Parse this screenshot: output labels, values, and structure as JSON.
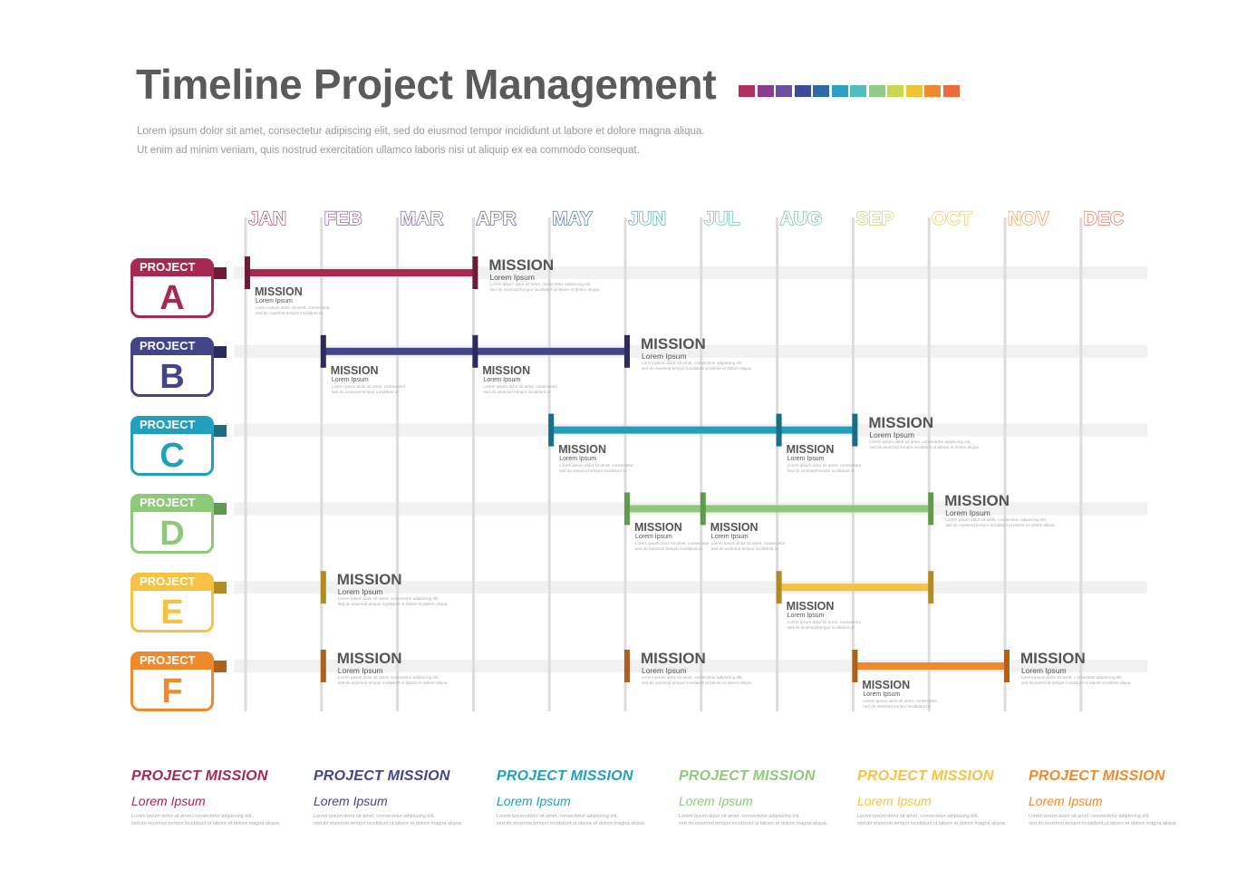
{
  "header": {
    "title": "Timeline Project Management",
    "subtitle_line1": "Lorem ipsum dolor sit amet, consectetur adipiscing elit, sed do eiusmod tempor incididunt ut labore et dolore magna aliqua.",
    "subtitle_line2": "Ut enim ad minim veniam, quis nostrud exercitation ullamco laboris nisi ut aliquip ex ea commodo consequat."
  },
  "swatch_colors": [
    "#b0305e",
    "#8a3d8f",
    "#6b4fa0",
    "#3e4a9a",
    "#2f6aa8",
    "#2aa2c6",
    "#4fc0bb",
    "#8fcf84",
    "#c6d94e",
    "#f2c233",
    "#f08a2e",
    "#ee6a3a"
  ],
  "months": [
    {
      "label": "JAN",
      "color": "#a0304f"
    },
    {
      "label": "FEB",
      "color": "#8d3a86"
    },
    {
      "label": "MAR",
      "color": "#6a4a9a"
    },
    {
      "label": "APR",
      "color": "#3e4a8e"
    },
    {
      "label": "MAY",
      "color": "#2f5fa0"
    },
    {
      "label": "JUN",
      "color": "#23a0c0"
    },
    {
      "label": "JUL",
      "color": "#3ab5b0"
    },
    {
      "label": "AUG",
      "color": "#5ab88a"
    },
    {
      "label": "SEP",
      "color": "#b8cf40"
    },
    {
      "label": "OCT",
      "color": "#f0b82e"
    },
    {
      "label": "NOV",
      "color": "#f08a2e"
    },
    {
      "label": "DEC",
      "color": "#e65a3a"
    }
  ],
  "projects": [
    {
      "label": "PROJECT",
      "letter": "A",
      "color": "#a7294f",
      "dark": "#6e1c36",
      "start": 0,
      "end": 3,
      "milestones": [
        {
          "at": 0,
          "text": "below",
          "title": "MISSION",
          "sub": "Lorem Ipsum",
          "desc1": "Lorem ipsum dolor sit amet, consectetur",
          "desc2": "sed do eiusmod tempor incididunt ut"
        },
        {
          "at": 3,
          "text": "right",
          "title": "MISSION",
          "sub": "Lorem Ipsum",
          "desc1": "Lorem ipsum dolor sit amet, consectetur adipiscing elit,",
          "desc2": "sed do eiusmod tempor incididunt ut labore et dolore aliqua."
        }
      ]
    },
    {
      "label": "PROJECT",
      "letter": "B",
      "color": "#424589",
      "dark": "#2a2c5c",
      "start": 1,
      "end": 5,
      "milestones": [
        {
          "at": 1,
          "text": "below",
          "title": "MISSION",
          "sub": "Lorem Ipsum",
          "desc1": "Lorem ipsum dolor sit amet, consectetur",
          "desc2": "sed do eiusmod tempor incididunt ut"
        },
        {
          "at": 3,
          "text": "below",
          "title": "MISSION",
          "sub": "Lorem Ipsum",
          "desc1": "Lorem ipsum dolor sit amet, consectetur",
          "desc2": "sed do eiusmod tempor incididunt ut"
        },
        {
          "at": 5,
          "text": "right",
          "title": "MISSION",
          "sub": "Lorem Ipsum",
          "desc1": "Lorem ipsum dolor sit amet, consectetur adipiscing elit,",
          "desc2": "sed do eiusmod tempor incididunt ut labore et dolore aliqua."
        }
      ]
    },
    {
      "label": "PROJECT",
      "letter": "C",
      "color": "#21a0bd",
      "dark": "#176f85",
      "start": 4,
      "end": 8,
      "milestones": [
        {
          "at": 4,
          "text": "below",
          "title": "MISSION",
          "sub": "Lorem Ipsum",
          "desc1": "Lorem ipsum dolor sit amet, consectetur",
          "desc2": "sed do eiusmod tempor incididunt ut"
        },
        {
          "at": 7,
          "text": "below",
          "title": "MISSION",
          "sub": "Lorem Ipsum",
          "desc1": "Lorem ipsum dolor sit amet, consectetur",
          "desc2": "sed do eiusmod tempor incididunt ut"
        },
        {
          "at": 8,
          "text": "right",
          "title": "MISSION",
          "sub": "Lorem Ipsum",
          "desc1": "Lorem ipsum dolor sit amet, consectetur adipiscing elit,",
          "desc2": "sed do eiusmod tempor incididunt ut labore et dolore aliqua."
        }
      ]
    },
    {
      "label": "PROJECT",
      "letter": "D",
      "color": "#8ec97a",
      "dark": "#5f9a4f",
      "start": 5,
      "end": 9,
      "milestones": [
        {
          "at": 5,
          "text": "below",
          "title": "MISSION",
          "sub": "Lorem Ipsum",
          "desc1": "Lorem ipsum dolor sit amet, consectetur",
          "desc2": "sed do eiusmod tempor incididunt ut"
        },
        {
          "at": 6,
          "text": "below",
          "title": "MISSION",
          "sub": "Lorem Ipsum",
          "desc1": "Lorem ipsum dolor sit amet, consectetur",
          "desc2": "sed do eiusmod tempor incididunt ut"
        },
        {
          "at": 9,
          "text": "right",
          "title": "MISSION",
          "sub": "Lorem Ipsum",
          "desc1": "Lorem ipsum dolor sit amet, consectetur adipiscing elit,",
          "desc2": "sed do eiusmod tempor incididunt ut labore et dolore aliqua."
        }
      ]
    },
    {
      "label": "PROJECT",
      "letter": "E",
      "color": "#f5c243",
      "dark": "#b08c22",
      "start": 7,
      "end": 9,
      "milestones": [
        {
          "at": 1,
          "text": "right",
          "title": "MISSION",
          "sub": "Lorem Ipsum",
          "desc1": "Lorem ipsum dolor sit amet, consectetur adipiscing elit,",
          "desc2": "sed do eiusmod tempor incididunt ut labore et dolore aliqua."
        },
        {
          "at": 7,
          "text": "below",
          "title": "MISSION",
          "sub": "Lorem Ipsum",
          "desc1": "Lorem ipsum dolor sit amet, consectetur",
          "desc2": "sed do eiusmod tempor incididunt ut"
        },
        {
          "at": 9,
          "text": "none"
        }
      ]
    },
    {
      "label": "PROJECT",
      "letter": "F",
      "color": "#f0892c",
      "dark": "#b0601a",
      "start": 8,
      "end": 10,
      "milestones": [
        {
          "at": 1,
          "text": "right",
          "title": "MISSION",
          "sub": "Lorem Ipsum",
          "desc1": "Lorem ipsum dolor sit amet, consectetur adipiscing elit,",
          "desc2": "sed do eiusmod tempor incididunt ut labore et dolore aliqua."
        },
        {
          "at": 5,
          "text": "right",
          "title": "MISSION",
          "sub": "Lorem Ipsum",
          "desc1": "Lorem ipsum dolor sit amet, consectetur adipiscing elit,",
          "desc2": "sed do eiusmod tempor incididunt ut labore et dolore aliqua."
        },
        {
          "at": 8,
          "text": "below",
          "title": "MISSION",
          "sub": "Lorem Ipsum",
          "desc1": "Lorem ipsum dolor sit amet, consectetur",
          "desc2": "sed do eiusmod tempor incididunt ut"
        },
        {
          "at": 10,
          "text": "right",
          "title": "MISSION",
          "sub": "Lorem Ipsum",
          "desc1": "Lorem ipsum dolor sit amet, consectetur adipiscing elit,",
          "desc2": "sed do eiusmod tempor incididunt ut labore et dolore aliqua."
        }
      ]
    }
  ],
  "legend": [
    {
      "title": "PROJECT  MISSION",
      "sub": "Lorem Ipsum",
      "color": "#a7294f",
      "desc1": "Lorem ipsum dolor sit amet, consectetur adipiscing elit,",
      "desc2": "sed do eiusmod tempor incididunt ut labore et dolore magna aliqua."
    },
    {
      "title": "PROJECT  MISSION",
      "sub": "Lorem Ipsum",
      "color": "#424589",
      "desc1": "Lorem ipsum dolor sit amet, consectetur adipiscing elit,",
      "desc2": "sed do eiusmod tempor incididunt ut labore et dolore magna aliqua."
    },
    {
      "title": "PROJECT  MISSION",
      "sub": "Lorem Ipsum",
      "color": "#21a0bd",
      "desc1": "Lorem ipsum dolor sit amet, consectetur adipiscing elit,",
      "desc2": "sed do eiusmod tempor incididunt ut labore et dolore magna aliqua."
    },
    {
      "title": "PROJECT  MISSION",
      "sub": "Lorem Ipsum",
      "color": "#8ec97a",
      "desc1": "Lorem ipsum dolor sit amet, consectetur adipiscing elit,",
      "desc2": "sed do eiusmod tempor incididunt ut labore et dolore magna aliqua."
    },
    {
      "title": "PROJECT  MISSION",
      "sub": "Lorem Ipsum",
      "color": "#f5c243",
      "desc1": "Lorem ipsum dolor sit amet, consectetur adipiscing elit,",
      "desc2": "sed do eiusmod tempor incididunt ut labore et dolore magna aliqua."
    },
    {
      "title": "PROJECT  MISSION",
      "sub": "Lorem Ipsum",
      "color": "#f0892c",
      "desc1": "Lorem ipsum dolor sit amet, consectetur adipiscing elit,",
      "desc2": "sed do eiusmod tempor incididunt ut labore et dolore magna aliqua."
    }
  ]
}
